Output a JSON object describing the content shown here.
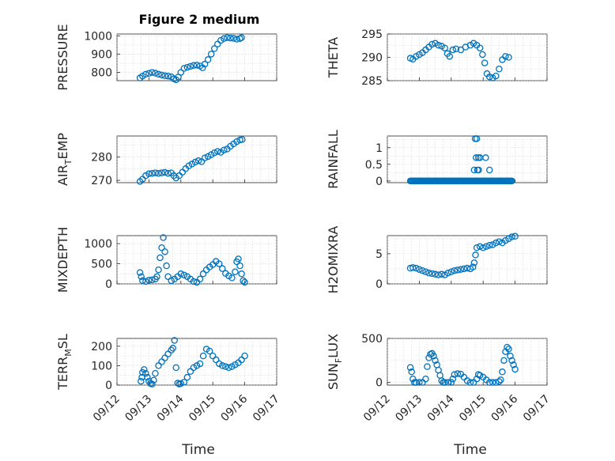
{
  "figure": {
    "title": "Figure 2 medium",
    "x_label": "Time"
  },
  "colors": {
    "marker": "#0072BD",
    "axis": "#262626",
    "grid": "#c8c8c8"
  },
  "chart_data": [
    {
      "type": "scatter",
      "ylabel": "PRESSURE",
      "ylabel_parts": [
        "PRESSURE"
      ],
      "title": "Figure 2 medium",
      "xlim": [
        0,
        5
      ],
      "ylim": [
        755,
        1010
      ],
      "yticks": [
        800,
        900,
        1000
      ],
      "xticks": [
        0,
        1,
        2,
        3,
        4,
        5
      ],
      "xticklabels": [
        "",
        "",
        "",
        "",
        "",
        ""
      ],
      "grid": true,
      "points": [
        [
          0.72,
          770
        ],
        [
          0.8,
          780
        ],
        [
          0.9,
          790
        ],
        [
          1.0,
          795
        ],
        [
          1.1,
          800
        ],
        [
          1.2,
          796
        ],
        [
          1.3,
          790
        ],
        [
          1.4,
          786
        ],
        [
          1.5,
          782
        ],
        [
          1.6,
          780
        ],
        [
          1.7,
          776
        ],
        [
          1.78,
          765
        ],
        [
          1.85,
          760
        ],
        [
          1.92,
          775
        ],
        [
          2.0,
          800
        ],
        [
          2.1,
          822
        ],
        [
          2.2,
          828
        ],
        [
          2.3,
          833
        ],
        [
          2.4,
          838
        ],
        [
          2.5,
          840
        ],
        [
          2.6,
          835
        ],
        [
          2.68,
          825
        ],
        [
          2.75,
          845
        ],
        [
          2.85,
          870
        ],
        [
          2.95,
          900
        ],
        [
          3.05,
          930
        ],
        [
          3.15,
          955
        ],
        [
          3.25,
          975
        ],
        [
          3.35,
          985
        ],
        [
          3.45,
          990
        ],
        [
          3.55,
          988
        ],
        [
          3.65,
          986
        ],
        [
          3.75,
          982
        ],
        [
          3.85,
          985
        ],
        [
          3.9,
          990
        ]
      ]
    },
    {
      "type": "scatter",
      "ylabel": "THETA",
      "ylabel_parts": [
        "THETA"
      ],
      "xlim": [
        0,
        5
      ],
      "ylim": [
        285,
        295
      ],
      "yticks": [
        285,
        290,
        295
      ],
      "xticks": [
        0,
        1,
        2,
        3,
        4,
        5
      ],
      "xticklabels": [
        "",
        "",
        "",
        "",
        "",
        ""
      ],
      "grid": true,
      "points": [
        [
          0.72,
          289.8
        ],
        [
          0.8,
          289.6
        ],
        [
          0.9,
          290.2
        ],
        [
          1.0,
          290.6
        ],
        [
          1.1,
          291.0
        ],
        [
          1.2,
          291.6
        ],
        [
          1.3,
          292.2
        ],
        [
          1.4,
          292.8
        ],
        [
          1.5,
          293.0
        ],
        [
          1.6,
          292.6
        ],
        [
          1.7,
          292.4
        ],
        [
          1.8,
          292.0
        ],
        [
          1.88,
          290.8
        ],
        [
          1.95,
          290.2
        ],
        [
          2.05,
          291.6
        ],
        [
          2.15,
          291.8
        ],
        [
          2.3,
          291.6
        ],
        [
          2.45,
          292.2
        ],
        [
          2.6,
          292.6
        ],
        [
          2.7,
          293.0
        ],
        [
          2.8,
          292.6
        ],
        [
          2.9,
          292.0
        ],
        [
          2.98,
          290.6
        ],
        [
          3.05,
          288.8
        ],
        [
          3.12,
          286.5
        ],
        [
          3.2,
          285.8
        ],
        [
          3.3,
          285.6
        ],
        [
          3.4,
          286.0
        ],
        [
          3.5,
          287.5
        ],
        [
          3.6,
          289.5
        ],
        [
          3.7,
          290.2
        ],
        [
          3.8,
          290.0
        ]
      ]
    },
    {
      "type": "scatter",
      "ylabel": "AIR_TEMP",
      "ylabel_parts": [
        "AIR",
        "T",
        "EMP"
      ],
      "xlim": [
        0,
        5
      ],
      "ylim": [
        269,
        289
      ],
      "yticks": [
        270,
        280
      ],
      "xticks": [
        0,
        1,
        2,
        3,
        4,
        5
      ],
      "xticklabels": [
        "",
        "",
        "",
        "",
        "",
        ""
      ],
      "grid": true,
      "points": [
        [
          0.72,
          269.5
        ],
        [
          0.8,
          270.5
        ],
        [
          0.9,
          272.0
        ],
        [
          1.0,
          272.8
        ],
        [
          1.1,
          273.0
        ],
        [
          1.2,
          273.2
        ],
        [
          1.3,
          273.0
        ],
        [
          1.4,
          273.2
        ],
        [
          1.5,
          273.4
        ],
        [
          1.6,
          273.0
        ],
        [
          1.7,
          273.2
        ],
        [
          1.78,
          272.0
        ],
        [
          1.85,
          271.0
        ],
        [
          1.95,
          272.0
        ],
        [
          2.05,
          273.5
        ],
        [
          2.15,
          275.0
        ],
        [
          2.25,
          276.2
        ],
        [
          2.35,
          277.0
        ],
        [
          2.45,
          277.8
        ],
        [
          2.55,
          278.4
        ],
        [
          2.65,
          278.0
        ],
        [
          2.75,
          279.6
        ],
        [
          2.85,
          280.2
        ],
        [
          2.95,
          281.0
        ],
        [
          3.05,
          281.8
        ],
        [
          3.15,
          282.4
        ],
        [
          3.25,
          282.0
        ],
        [
          3.35,
          283.0
        ],
        [
          3.45,
          283.4
        ],
        [
          3.55,
          284.6
        ],
        [
          3.65,
          285.6
        ],
        [
          3.75,
          286.6
        ],
        [
          3.85,
          287.3
        ],
        [
          3.92,
          287.5
        ]
      ]
    },
    {
      "type": "scatter",
      "ylabel": "RAINFALL",
      "ylabel_parts": [
        "RAINFALL"
      ],
      "xlim": [
        0,
        5
      ],
      "ylim": [
        -0.05,
        1.35
      ],
      "yticks": [
        0,
        0.5,
        1
      ],
      "yticklabels": [
        "0",
        "0.5",
        "1"
      ],
      "xticks": [
        0,
        1,
        2,
        3,
        4,
        5
      ],
      "xticklabels": [
        "",
        "",
        "",
        "",
        "",
        ""
      ],
      "grid": true,
      "zero_range": [
        0.72,
        3.9
      ],
      "zero_step": 0.03,
      "points": [
        [
          2.75,
          1.27
        ],
        [
          2.8,
          1.27
        ],
        [
          2.72,
          0.33
        ],
        [
          2.82,
          0.33
        ],
        [
          2.86,
          0.33
        ],
        [
          2.78,
          0.7
        ],
        [
          2.85,
          0.7
        ],
        [
          2.9,
          0.7
        ],
        [
          3.08,
          0.7
        ],
        [
          3.2,
          0.33
        ]
      ]
    },
    {
      "type": "scatter",
      "ylabel": "MIXDEPTH",
      "ylabel_parts": [
        "MIXDEPTH"
      ],
      "xlim": [
        0,
        5
      ],
      "ylim": [
        0,
        1200
      ],
      "yticks": [
        0,
        500,
        1000
      ],
      "xticks": [
        0,
        1,
        2,
        3,
        4,
        5
      ],
      "xticklabels": [
        "",
        "",
        "",
        "",
        "",
        ""
      ],
      "grid": true,
      "points": [
        [
          0.72,
          280
        ],
        [
          0.76,
          180
        ],
        [
          0.8,
          80
        ],
        [
          0.9,
          60
        ],
        [
          1.0,
          90
        ],
        [
          1.1,
          100
        ],
        [
          1.2,
          120
        ],
        [
          1.25,
          180
        ],
        [
          1.3,
          350
        ],
        [
          1.35,
          650
        ],
        [
          1.4,
          900
        ],
        [
          1.45,
          1150
        ],
        [
          1.5,
          800
        ],
        [
          1.55,
          450
        ],
        [
          1.6,
          180
        ],
        [
          1.7,
          80
        ],
        [
          1.8,
          120
        ],
        [
          1.9,
          180
        ],
        [
          2.0,
          250
        ],
        [
          2.1,
          220
        ],
        [
          2.2,
          180
        ],
        [
          2.3,
          120
        ],
        [
          2.4,
          60
        ],
        [
          2.5,
          40
        ],
        [
          2.6,
          120
        ],
        [
          2.7,
          250
        ],
        [
          2.8,
          350
        ],
        [
          2.9,
          420
        ],
        [
          3.0,
          480
        ],
        [
          3.1,
          560
        ],
        [
          3.2,
          500
        ],
        [
          3.3,
          380
        ],
        [
          3.4,
          260
        ],
        [
          3.5,
          200
        ],
        [
          3.6,
          150
        ],
        [
          3.7,
          300
        ],
        [
          3.75,
          550
        ],
        [
          3.8,
          620
        ],
        [
          3.85,
          450
        ],
        [
          3.9,
          250
        ],
        [
          3.95,
          80
        ],
        [
          4.0,
          40
        ]
      ]
    },
    {
      "type": "scatter",
      "ylabel": "H2OMIXRA",
      "ylabel_parts": [
        "H2OMIXRA"
      ],
      "xlim": [
        0,
        5
      ],
      "ylim": [
        0,
        8
      ],
      "yticks": [
        0,
        5
      ],
      "xticks": [
        0,
        1,
        2,
        3,
        4,
        5
      ],
      "xticklabels": [
        "",
        "",
        "",
        "",
        "",
        ""
      ],
      "grid": true,
      "points": [
        [
          0.72,
          2.6
        ],
        [
          0.8,
          2.7
        ],
        [
          0.9,
          2.6
        ],
        [
          1.0,
          2.4
        ],
        [
          1.1,
          2.2
        ],
        [
          1.2,
          2.0
        ],
        [
          1.3,
          1.8
        ],
        [
          1.4,
          1.7
        ],
        [
          1.5,
          1.6
        ],
        [
          1.6,
          1.5
        ],
        [
          1.7,
          1.6
        ],
        [
          1.8,
          1.5
        ],
        [
          1.9,
          1.8
        ],
        [
          2.0,
          2.0
        ],
        [
          2.1,
          2.2
        ],
        [
          2.2,
          2.3
        ],
        [
          2.3,
          2.4
        ],
        [
          2.4,
          2.5
        ],
        [
          2.5,
          2.6
        ],
        [
          2.6,
          2.5
        ],
        [
          2.68,
          2.8
        ],
        [
          2.72,
          3.5
        ],
        [
          2.76,
          4.8
        ],
        [
          2.8,
          6.0
        ],
        [
          2.9,
          6.2
        ],
        [
          3.0,
          6.0
        ],
        [
          3.1,
          6.2
        ],
        [
          3.2,
          6.4
        ],
        [
          3.3,
          6.5
        ],
        [
          3.4,
          6.8
        ],
        [
          3.5,
          7.0
        ],
        [
          3.6,
          6.8
        ],
        [
          3.7,
          7.2
        ],
        [
          3.8,
          7.5
        ],
        [
          3.9,
          7.8
        ],
        [
          4.0,
          7.9
        ]
      ]
    },
    {
      "type": "scatter",
      "ylabel": "TERR_MSL",
      "ylabel_parts": [
        "TERR",
        "M",
        "SL"
      ],
      "xlim": [
        0,
        5
      ],
      "ylim": [
        0,
        240
      ],
      "yticks": [
        0,
        100,
        200
      ],
      "xticks": [
        0,
        1,
        2,
        3,
        4,
        5
      ],
      "xticklabels": [
        "09/12",
        "09/13",
        "09/14",
        "09/15",
        "09/16",
        "09/17"
      ],
      "grid": true,
      "points": [
        [
          0.75,
          20
        ],
        [
          0.78,
          40
        ],
        [
          0.8,
          65
        ],
        [
          0.85,
          80
        ],
        [
          0.9,
          60
        ],
        [
          0.95,
          40
        ],
        [
          1.0,
          20
        ],
        [
          1.05,
          8
        ],
        [
          1.1,
          5
        ],
        [
          1.15,
          25
        ],
        [
          1.2,
          60
        ],
        [
          1.3,
          100
        ],
        [
          1.4,
          120
        ],
        [
          1.5,
          140
        ],
        [
          1.6,
          160
        ],
        [
          1.7,
          180
        ],
        [
          1.75,
          190
        ],
        [
          1.8,
          230
        ],
        [
          1.85,
          90
        ],
        [
          1.9,
          10
        ],
        [
          1.95,
          5
        ],
        [
          2.0,
          8
        ],
        [
          2.1,
          15
        ],
        [
          2.2,
          40
        ],
        [
          2.3,
          70
        ],
        [
          2.4,
          90
        ],
        [
          2.5,
          100
        ],
        [
          2.6,
          110
        ],
        [
          2.7,
          150
        ],
        [
          2.8,
          185
        ],
        [
          2.9,
          175
        ],
        [
          3.0,
          150
        ],
        [
          3.1,
          130
        ],
        [
          3.2,
          110
        ],
        [
          3.3,
          100
        ],
        [
          3.4,
          95
        ],
        [
          3.5,
          90
        ],
        [
          3.6,
          95
        ],
        [
          3.7,
          105
        ],
        [
          3.8,
          115
        ],
        [
          3.9,
          130
        ],
        [
          4.0,
          150
        ]
      ]
    },
    {
      "type": "scatter",
      "ylabel": "SUN_FLUX",
      "ylabel_parts": [
        "SUN",
        "F",
        "LUX"
      ],
      "xlim": [
        0,
        5
      ],
      "ylim": [
        -30,
        500
      ],
      "yticks": [
        0,
        500
      ],
      "xticks": [
        0,
        1,
        2,
        3,
        4,
        5
      ],
      "xticklabels": [
        "09/12",
        "09/13",
        "09/14",
        "09/15",
        "09/16",
        "09/17"
      ],
      "grid": true,
      "points": [
        [
          0.72,
          170
        ],
        [
          0.76,
          120
        ],
        [
          0.8,
          40
        ],
        [
          0.85,
          0
        ],
        [
          0.9,
          0
        ],
        [
          1.0,
          0
        ],
        [
          1.1,
          0
        ],
        [
          1.2,
          40
        ],
        [
          1.25,
          180
        ],
        [
          1.3,
          280
        ],
        [
          1.35,
          320
        ],
        [
          1.4,
          330
        ],
        [
          1.45,
          300
        ],
        [
          1.5,
          250
        ],
        [
          1.55,
          200
        ],
        [
          1.6,
          140
        ],
        [
          1.65,
          80
        ],
        [
          1.7,
          20
        ],
        [
          1.75,
          0
        ],
        [
          1.8,
          0
        ],
        [
          1.9,
          0
        ],
        [
          2.0,
          0
        ],
        [
          2.05,
          40
        ],
        [
          2.1,
          90
        ],
        [
          2.2,
          100
        ],
        [
          2.3,
          95
        ],
        [
          2.4,
          60
        ],
        [
          2.5,
          20
        ],
        [
          2.6,
          0
        ],
        [
          2.7,
          0
        ],
        [
          2.8,
          40
        ],
        [
          2.85,
          90
        ],
        [
          2.9,
          80
        ],
        [
          3.0,
          60
        ],
        [
          3.1,
          30
        ],
        [
          3.2,
          0
        ],
        [
          3.3,
          0
        ],
        [
          3.4,
          0
        ],
        [
          3.5,
          10
        ],
        [
          3.55,
          30
        ],
        [
          3.6,
          120
        ],
        [
          3.65,
          250
        ],
        [
          3.7,
          350
        ],
        [
          3.75,
          400
        ],
        [
          3.8,
          380
        ],
        [
          3.85,
          300
        ],
        [
          3.9,
          250
        ],
        [
          3.95,
          200
        ],
        [
          4.0,
          150
        ]
      ]
    }
  ]
}
